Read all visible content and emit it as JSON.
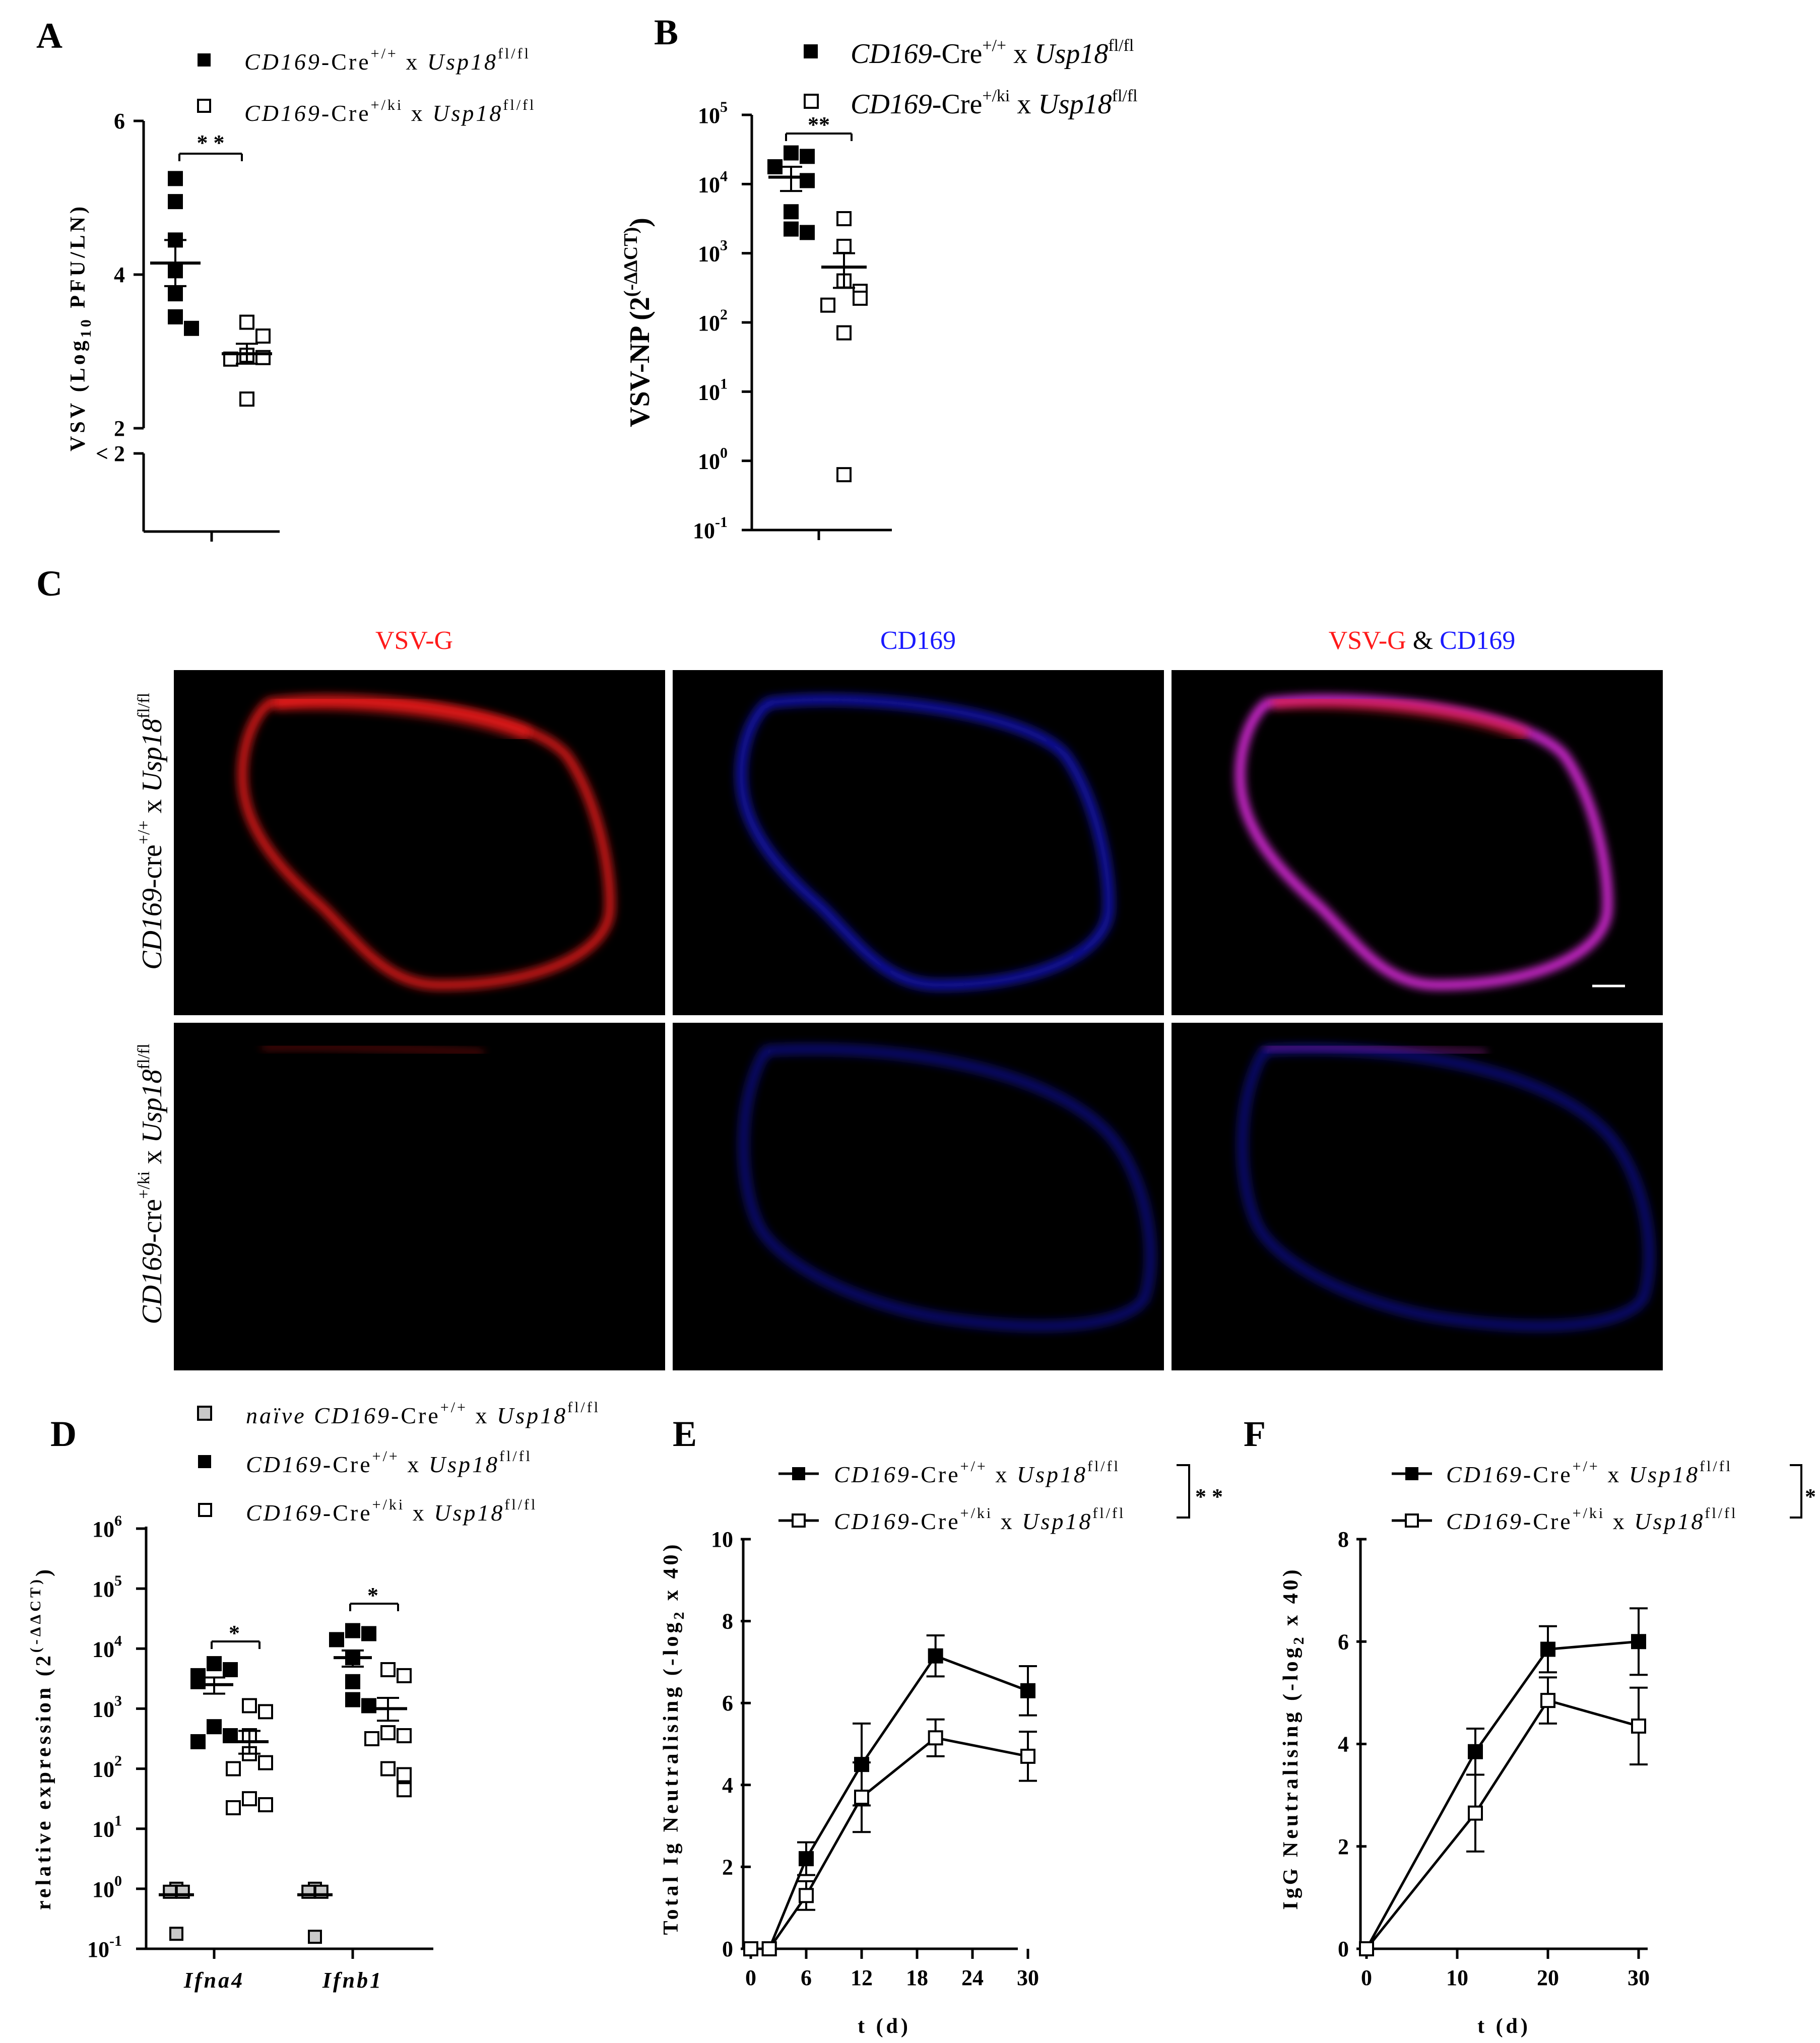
{
  "colors": {
    "black": "#000000",
    "gray": "#c8c8c8",
    "red": "#ff1a1a",
    "blue": "#1a1aff",
    "magenta": "#ff33ff",
    "panel_bg": "#000000"
  },
  "legend": {
    "wt_geno": "CD169",
    "wt_cre": "-Cre",
    "wt_sup": "+/+",
    "wt_x": " x ",
    "wt_gene": "Usp18",
    "wt_fl": "fl/fl",
    "ki_geno": "CD169",
    "ki_cre": "-Cre",
    "ki_sup": "+/ki",
    "ki_x": " x ",
    "ki_gene": "Usp18",
    "ki_fl": "fl/fl",
    "naive_word": "naïve ",
    "naive_geno": "CD169",
    "naive_cre": "-Cre",
    "naive_sup": "+/+",
    "naive_x": " x ",
    "naive_gene": "Usp18",
    "naive_fl": "fl/fl"
  },
  "imaging": {
    "label": "C",
    "channels": {
      "vsvg": "VSV-G",
      "cd169": "CD169",
      "amp": " & "
    },
    "rows": {
      "top": {
        "geno": "CD169",
        "cre": "-cre",
        "sup": "+/+",
        "x": " x ",
        "gene": "Usp18",
        "fl": "fl/fl"
      },
      "bottom": {
        "geno": "CD169",
        "cre": "-cre",
        "sup": "+/ki",
        "x": " x ",
        "gene": "Usp18",
        "fl": "fl/fl"
      }
    }
  },
  "chart_data": [
    {
      "panel": "A",
      "type": "scatter",
      "ylabel": "VSV (Log10 PFU/LN)",
      "ylabel_pre": "VSV (Log",
      "ylabel_sub": "10",
      "ylabel_post": " PFU/LN)",
      "yticks": [
        "6",
        "4",
        "2",
        "< 2"
      ],
      "ylim": [
        2,
        6
      ],
      "broken_axis": true,
      "series": [
        {
          "name": "CD169-Cre+/+ x Usp18fl/fl",
          "marker": "filled-square",
          "values": [
            5.25,
            4.95,
            4.45,
            4.05,
            3.75,
            3.45,
            3.3
          ],
          "mean": 4.15,
          "sem": 0.3
        },
        {
          "name": "CD169-Cre+/ki x Usp18fl/fl",
          "marker": "open-square",
          "values": [
            3.38,
            3.2,
            2.95,
            2.92,
            2.9,
            2.38
          ],
          "mean": 2.97,
          "sem": 0.13
        }
      ],
      "significance": "* *"
    },
    {
      "panel": "B",
      "type": "scatter",
      "yscale": "log",
      "ylabel": "VSV-NP (2(-ΔΔCT))",
      "ylabel_pre": "VSV-NP (2",
      "ylabel_sup": "(-ΔΔCT)",
      "ylabel_post": ")",
      "yticks": [
        "10",
        "10",
        "10",
        "10",
        "10",
        "10",
        "10"
      ],
      "ytick_exps": [
        "5",
        "4",
        "3",
        "2",
        "1",
        "0",
        "-1"
      ],
      "ylim": [
        -1,
        5
      ],
      "series": [
        {
          "name": "CD169-Cre+/+ x Usp18fl/fl",
          "marker": "filled-square",
          "log_values": [
            4.45,
            4.4,
            4.25,
            4.05,
            3.6,
            3.35,
            3.3
          ],
          "log_mean": 4.1,
          "log_sem_hi": 4.25,
          "log_sem_lo": 3.9
        },
        {
          "name": "CD169-Cre+/ki x Usp18fl/fl",
          "marker": "open-square",
          "log_values": [
            3.5,
            3.1,
            2.6,
            2.45,
            2.35,
            2.25,
            1.85,
            -0.2
          ],
          "log_mean": 2.8,
          "log_sem_hi": 3.0,
          "log_sem_lo": 2.5
        }
      ],
      "significance": "**"
    },
    {
      "panel": "D",
      "type": "scatter",
      "yscale": "log",
      "ylabel": "relative expression (2(-ΔΔCT))",
      "ylabel_pre": "relative expression (2",
      "ylabel_sup": "(-ΔΔCT)",
      "ylabel_post": ")",
      "yticks": [
        "10",
        "10",
        "10",
        "10",
        "10",
        "10",
        "10",
        "10"
      ],
      "ytick_exps": [
        "6",
        "5",
        "4",
        "3",
        "2",
        "1",
        "0",
        "-1"
      ],
      "ylim": [
        -1,
        6
      ],
      "categories": [
        "Ifna4",
        "Ifnb1"
      ],
      "groups": [
        {
          "category": "Ifna4",
          "naive": {
            "log_values": [
              0.0,
              -0.05,
              -0.05,
              -0.75
            ],
            "log_mean": -0.1
          },
          "wt": {
            "log_values": [
              3.75,
              3.65,
              3.55,
              3.45,
              2.7,
              2.55,
              2.45
            ],
            "log_mean": 3.4
          },
          "ki": {
            "log_values": [
              3.05,
              2.95,
              2.55,
              2.25,
              2.1,
              2.0,
              1.5,
              1.4,
              1.35
            ],
            "log_mean": 2.45
          },
          "significance": "*"
        },
        {
          "category": "Ifnb1",
          "naive": {
            "log_values": [
              0.0,
              -0.05,
              -0.05,
              -0.8
            ],
            "log_mean": -0.1
          },
          "wt": {
            "log_values": [
              4.3,
              4.25,
              4.15,
              3.85,
              3.45,
              3.15,
              3.05
            ],
            "log_mean": 3.85
          },
          "ki": {
            "log_values": [
              3.65,
              3.55,
              2.6,
              2.55,
              2.5,
              2.0,
              1.9,
              1.65
            ],
            "log_mean": 3.0
          },
          "significance": "*"
        }
      ]
    },
    {
      "panel": "E",
      "type": "line",
      "xlabel": "t (d)",
      "ylabel": "Total Ig Neutralising (-log2 x 40)",
      "ylabel_pre": "Total Ig Neutralising (-log",
      "ylabel_sub": "2",
      "ylabel_post": " x 40)",
      "x": [
        0,
        2,
        6,
        12,
        20,
        30
      ],
      "xticks": [
        "0",
        "6",
        "12",
        "18",
        "24",
        "30"
      ],
      "yticks": [
        "0",
        "2",
        "4",
        "6",
        "8",
        "10"
      ],
      "xlim": [
        0,
        30
      ],
      "ylim": [
        0,
        10
      ],
      "series": [
        {
          "name": "CD169-Cre+/+ x Usp18fl/fl",
          "marker": "filled-square",
          "values": [
            0,
            0,
            2.2,
            4.5,
            7.15,
            6.3
          ],
          "errors": [
            0,
            0,
            0.4,
            1.0,
            0.5,
            0.6
          ]
        },
        {
          "name": "CD169-Cre+/ki x Usp18fl/fl",
          "marker": "open-square",
          "values": [
            0,
            0,
            1.3,
            3.7,
            5.15,
            4.7
          ],
          "errors": [
            0,
            0,
            0.35,
            0.85,
            0.45,
            0.6
          ]
        }
      ],
      "significance": "* *"
    },
    {
      "panel": "F",
      "type": "line",
      "xlabel": "t (d)",
      "ylabel": "IgG Neutralising (-log2 x 40)",
      "ylabel_pre": "IgG Neutralising (-log",
      "ylabel_sub": "2",
      "ylabel_post": " x 40)",
      "x": [
        0,
        12,
        20,
        30
      ],
      "xticks": [
        "0",
        "10",
        "20",
        "30"
      ],
      "yticks": [
        "0",
        "2",
        "4",
        "6",
        "8"
      ],
      "xlim": [
        0,
        30
      ],
      "ylim": [
        0,
        8
      ],
      "series": [
        {
          "name": "CD169-Cre+/+ x Usp18fl/fl",
          "marker": "filled-square",
          "values": [
            0,
            3.85,
            5.85,
            6.0
          ],
          "errors": [
            0,
            0.45,
            0.45,
            0.65
          ]
        },
        {
          "name": "CD169-Cre+/ki x Usp18fl/fl",
          "marker": "open-square",
          "values": [
            0,
            2.65,
            4.85,
            4.35
          ],
          "errors": [
            0,
            0.75,
            0.45,
            0.75
          ]
        }
      ],
      "significance": "*"
    }
  ]
}
